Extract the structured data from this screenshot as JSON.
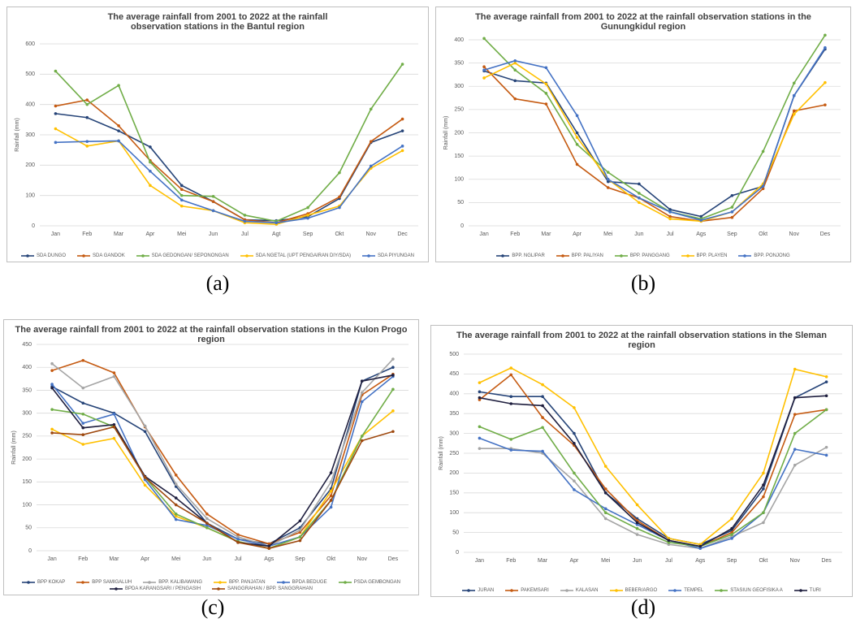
{
  "chart_data": [
    {
      "type": "line",
      "title": "The average rainfall from 2001 to 2022 at the rainfall observation stations in the Bantul region",
      "caption": "(a)",
      "y_label": "Rainfall (mm)",
      "categories": [
        "Jan",
        "Feb",
        "Mar",
        "Apr",
        "Mei",
        "Jun",
        "Jul",
        "Agt",
        "Sep",
        "Okt",
        "Nov",
        "Dec"
      ],
      "ylim": [
        0,
        600
      ],
      "yticks": [
        0,
        100,
        200,
        300,
        400,
        500,
        600
      ],
      "grid": true,
      "series": [
        {
          "name": "SDA DUNGO",
          "color": "#264478",
          "values": [
            370,
            357,
            313,
            260,
            133,
            80,
            20,
            17,
            30,
            90,
            275,
            313
          ]
        },
        {
          "name": "SDA GANDOK",
          "color": "#c55a11",
          "values": [
            395,
            415,
            330,
            215,
            120,
            80,
            20,
            10,
            40,
            95,
            278,
            352
          ]
        },
        {
          "name": "SDA GEDONGAN/ SEPONONGAN",
          "color": "#70ad47",
          "values": [
            510,
            400,
            463,
            210,
            100,
            97,
            35,
            15,
            60,
            175,
            385,
            533
          ]
        },
        {
          "name": "SDA NGETAL (UPT PENGAIRAN DIY/SDA)",
          "color": "#ffc000",
          "values": [
            320,
            263,
            280,
            133,
            65,
            50,
            10,
            5,
            35,
            65,
            190,
            248
          ]
        },
        {
          "name": "SDA PIYUNGAN",
          "color": "#4472c4",
          "values": [
            275,
            278,
            280,
            180,
            85,
            50,
            15,
            10,
            25,
            60,
            197,
            263
          ]
        }
      ]
    },
    {
      "type": "line",
      "title": "The average rainfall from 2001 to 2022 at the rainfall observation stations in the Gunungkidul region",
      "caption": "(b)",
      "y_label": "Rainfall (mm)",
      "categories": [
        "Jan",
        "Feb",
        "Mar",
        "Apr",
        "Mei",
        "Jun",
        "Jul",
        "Ags",
        "Sep",
        "Okt",
        "Nov",
        "Des"
      ],
      "ylim": [
        0,
        400
      ],
      "yticks": [
        0,
        50,
        100,
        150,
        200,
        250,
        300,
        350,
        400
      ],
      "grid": true,
      "series": [
        {
          "name": "BPP. NGLIPAR",
          "color": "#264478",
          "values": [
            333,
            312,
            307,
            200,
            95,
            90,
            35,
            20,
            65,
            85,
            280,
            380
          ]
        },
        {
          "name": "BPP. PALIYAN",
          "color": "#c55a11",
          "values": [
            342,
            273,
            262,
            132,
            82,
            60,
            20,
            10,
            18,
            80,
            247,
            260
          ]
        },
        {
          "name": "BPP. PANGGANG",
          "color": "#70ad47",
          "values": [
            403,
            335,
            285,
            175,
            115,
            70,
            30,
            15,
            40,
            160,
            307,
            410
          ]
        },
        {
          "name": "BPP. PLAYEN",
          "color": "#ffc000",
          "values": [
            318,
            350,
            305,
            190,
            100,
            50,
            15,
            10,
            30,
            90,
            240,
            308
          ]
        },
        {
          "name": "BPP. PONJONG",
          "color": "#4472c4",
          "values": [
            335,
            355,
            340,
            237,
            100,
            60,
            30,
            12,
            30,
            85,
            280,
            383
          ]
        }
      ]
    },
    {
      "type": "line",
      "title": "The average rainfall from 2001 to 2022 at the rainfall observation stations in the Kulon Progo region",
      "caption": "(c)",
      "y_label": "Rainfall (mm)",
      "categories": [
        "Jan",
        "Feb",
        "Mar",
        "Apr",
        "Mei",
        "Jun",
        "Jul",
        "Ags",
        "Sep",
        "Okt",
        "Nov",
        "Des"
      ],
      "ylim": [
        0,
        450
      ],
      "yticks": [
        0,
        50,
        100,
        150,
        200,
        250,
        300,
        350,
        400,
        450
      ],
      "grid": true,
      "series": [
        {
          "name": "BPP KOKAP",
          "color": "#264478",
          "values": [
            358,
            322,
            300,
            260,
            140,
            60,
            25,
            15,
            50,
            135,
            370,
            400
          ]
        },
        {
          "name": "BPP SAMIGALUH",
          "color": "#c55a11",
          "values": [
            393,
            415,
            388,
            270,
            165,
            80,
            35,
            15,
            40,
            120,
            340,
            385
          ]
        },
        {
          "name": "BPP. KALIBAWANG",
          "color": "#a5a5a5",
          "values": [
            408,
            355,
            380,
            272,
            145,
            70,
            30,
            10,
            45,
            150,
            345,
            418
          ]
        },
        {
          "name": "BPP. PANJATAN",
          "color": "#ffc000",
          "values": [
            265,
            232,
            245,
            143,
            75,
            50,
            20,
            5,
            30,
            130,
            250,
            305
          ]
        },
        {
          "name": "BPDA BEDUGE",
          "color": "#4472c4",
          "values": [
            363,
            278,
            298,
            155,
            68,
            55,
            25,
            10,
            30,
            95,
            325,
            380
          ]
        },
        {
          "name": "PSDA GEMBONGAN",
          "color": "#70ad47",
          "values": [
            308,
            298,
            270,
            160,
            80,
            50,
            20,
            5,
            30,
            110,
            250,
            352
          ]
        },
        {
          "name": "BPDA KARANGSARI / PENGASIH",
          "color": "#1f1f3f",
          "values": [
            355,
            268,
            275,
            162,
            115,
            60,
            18,
            10,
            65,
            170,
            370,
            383
          ]
        },
        {
          "name": "SANGGRAHAN / BPP. SANGGRAHAN",
          "color": "#9e480e",
          "values": [
            257,
            253,
            270,
            160,
            100,
            60,
            18,
            5,
            22,
            110,
            240,
            260
          ]
        }
      ]
    },
    {
      "type": "line",
      "title": "The average rainfall from 2001 to 2022 at the rainfall observation stations in the Sleman region",
      "caption": "(d)",
      "y_label": "Rainfall (mm)",
      "categories": [
        "Jan",
        "Feb",
        "Mar",
        "Apr",
        "Mei",
        "Jun",
        "Jul",
        "Ags",
        "Sep",
        "Okt",
        "Nov",
        "Des"
      ],
      "ylim": [
        0,
        500
      ],
      "yticks": [
        0,
        50,
        100,
        150,
        200,
        250,
        300,
        350,
        400,
        450,
        500
      ],
      "grid": true,
      "series": [
        {
          "name": "JURAN",
          "color": "#264478",
          "values": [
            405,
            393,
            393,
            300,
            150,
            85,
            35,
            20,
            55,
            160,
            390,
            430
          ]
        },
        {
          "name": "PAKEMSARI",
          "color": "#c55a11",
          "values": [
            385,
            448,
            340,
            270,
            160,
            80,
            30,
            15,
            50,
            140,
            348,
            360
          ]
        },
        {
          "name": "KALASAN",
          "color": "#a5a5a5",
          "values": [
            262,
            262,
            250,
            180,
            85,
            45,
            20,
            10,
            40,
            75,
            220,
            265
          ]
        },
        {
          "name": "BEBER/ARGO",
          "color": "#ffc000",
          "values": [
            428,
            465,
            423,
            365,
            217,
            120,
            35,
            20,
            85,
            200,
            462,
            443
          ]
        },
        {
          "name": "TEMPEL",
          "color": "#4472c4",
          "values": [
            288,
            258,
            255,
            158,
            110,
            70,
            30,
            10,
            35,
            100,
            260,
            245
          ]
        },
        {
          "name": "STASIUN GEOFISIKA A",
          "color": "#70ad47",
          "values": [
            317,
            285,
            315,
            200,
            100,
            60,
            25,
            15,
            45,
            100,
            300,
            360
          ]
        },
        {
          "name": "TURI",
          "color": "#1f1f3f",
          "values": [
            390,
            375,
            370,
            275,
            150,
            75,
            30,
            15,
            60,
            170,
            390,
            395
          ]
        }
      ]
    }
  ]
}
